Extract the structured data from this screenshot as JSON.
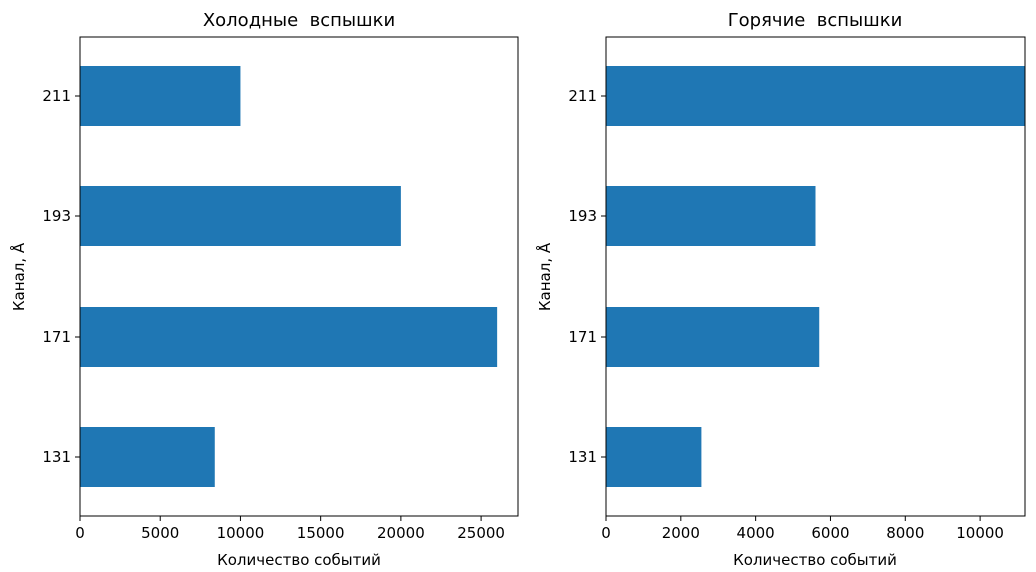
{
  "chart_data": [
    {
      "type": "bar",
      "orientation": "horizontal",
      "title": "Холодные  вспышки",
      "xlabel": "Количество событий",
      "ylabel": "Канал, Å",
      "categories": [
        "131",
        "171",
        "193",
        "211"
      ],
      "values": [
        8400,
        26000,
        20000,
        10000
      ],
      "xlim": [
        0,
        27300
      ],
      "xticks": [
        0,
        5000,
        10000,
        15000,
        20000,
        25000
      ],
      "bar_color": "#1f77b4",
      "grid": false,
      "legend": "none"
    },
    {
      "type": "bar",
      "orientation": "horizontal",
      "title": "Горячие  вспышки",
      "xlabel": "Количество событий",
      "ylabel": "Канал, Å",
      "categories": [
        "131",
        "171",
        "193",
        "211"
      ],
      "values": [
        2550,
        5700,
        5600,
        11200
      ],
      "xlim": [
        0,
        11200
      ],
      "xticks": [
        0,
        2000,
        4000,
        6000,
        8000,
        10000
      ],
      "bar_color": "#1f77b4",
      "grid": false,
      "legend": "none"
    }
  ]
}
